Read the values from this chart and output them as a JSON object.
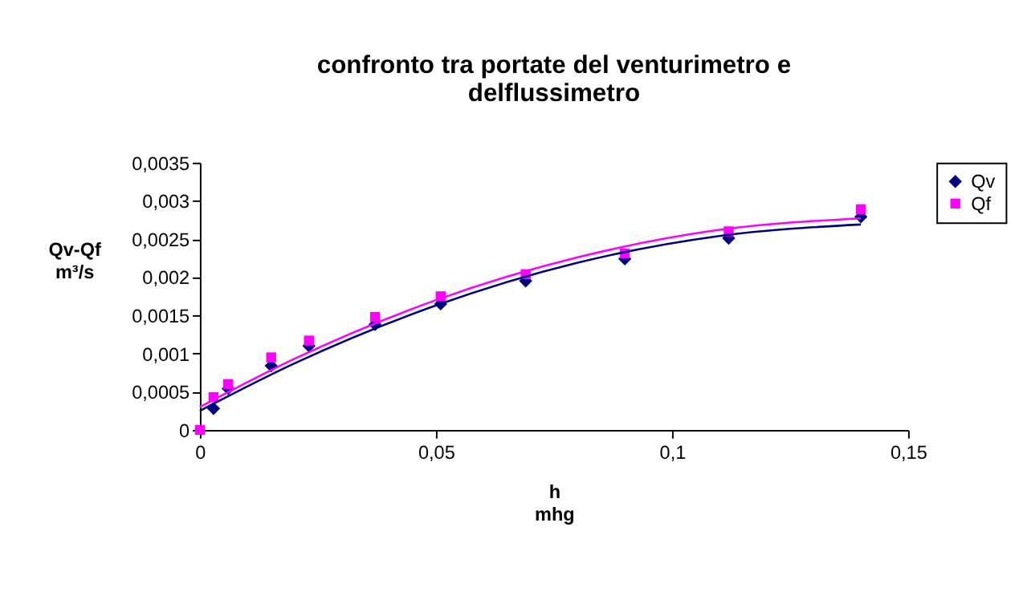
{
  "chart_data": {
    "type": "scatter",
    "title": [
      "confronto tra portate del venturimetro e",
      "delflussimetro"
    ],
    "xlabel": [
      "h",
      "mhg"
    ],
    "ylabel": [
      "Qv-Qf",
      "m³/s"
    ],
    "x": [
      0,
      0.0029,
      0.006,
      0.0151,
      0.0231,
      0.0371,
      0.051,
      0.069,
      0.09,
      0.112,
      0.14
    ],
    "series": [
      {
        "name": "Qv",
        "color": "#000080",
        "marker": "diamond",
        "values": [
          null,
          0.00028,
          0.00054,
          0.00084,
          0.0011,
          0.00138,
          0.00165,
          0.00195,
          0.00224,
          0.00251,
          0.00279
        ]
      },
      {
        "name": "Qf",
        "color": "#ff00ff",
        "marker": "square",
        "values": [
          0,
          0.00043,
          0.0006,
          0.00095,
          0.00117,
          0.00148,
          0.00175,
          0.00204,
          0.00231,
          0.0026,
          0.00289
        ]
      },
      {
        "type": "line",
        "color": "#000080",
        "x": [
          0,
          0.02,
          0.05,
          0.08,
          0.11,
          0.14
        ],
        "values": [
          0.00025,
          0.00087,
          0.00163,
          0.00219,
          0.00254,
          0.00269
        ]
      },
      {
        "type": "line",
        "color": "#ff00ff",
        "x": [
          0,
          0.02,
          0.05,
          0.08,
          0.11,
          0.14
        ],
        "values": [
          0.0003,
          0.00093,
          0.0017,
          0.00226,
          0.00262,
          0.00277
        ]
      }
    ],
    "xlim": [
      0,
      0.15
    ],
    "xticks": [
      0,
      {
        "value": 0.05,
        "label": "0,05"
      },
      {
        "value": 0.1,
        "label": "0,1"
      },
      {
        "value": 0.15,
        "label": "0,15"
      }
    ],
    "ylim": [
      0,
      0.0035
    ],
    "yticks": [
      0,
      {
        "value": 0.0005,
        "label": "0,0005"
      },
      {
        "value": 0.001,
        "label": "0,001"
      },
      {
        "value": 0.0015,
        "label": "0,0015"
      },
      {
        "value": 0.002,
        "label": "0,002"
      },
      {
        "value": 0.0025,
        "label": "0,0025"
      },
      {
        "value": 0.003,
        "label": "0,003"
      },
      {
        "value": 0.0035,
        "label": "0,0035"
      }
    ],
    "grid": false,
    "legend": "right",
    "line_style": "solid"
  }
}
